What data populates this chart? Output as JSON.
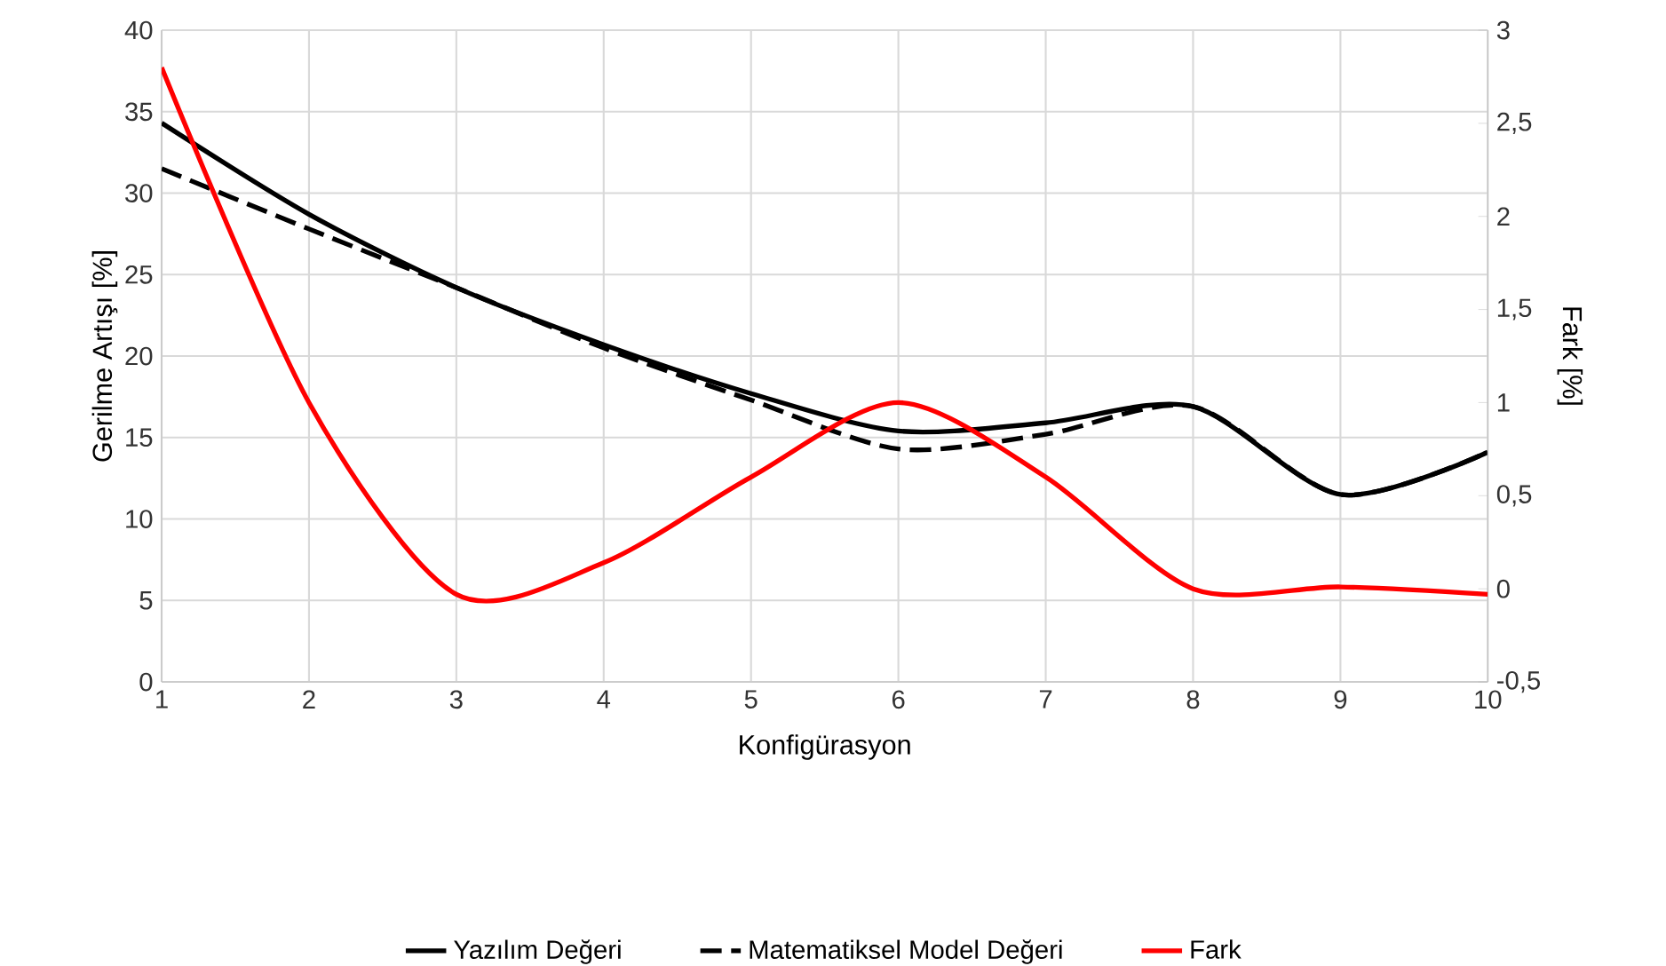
{
  "chart_data": {
    "type": "line",
    "xlabel": "Konfigürasyon",
    "ylabel": "Gerilme Artışı [%]",
    "y2label": "Fark [%]",
    "x": [
      1,
      2,
      3,
      4,
      5,
      6,
      7,
      8,
      9,
      10
    ],
    "series": [
      {
        "name": "Yazılım Değeri",
        "color": "#000000",
        "line_style": "solid",
        "values": [
          34.3,
          28.7,
          24.2,
          20.7,
          17.7,
          15.4,
          15.9,
          16.9,
          11.5,
          14.1
        ]
      },
      {
        "name": "Matematiksel Model Değeri",
        "color": "#000000",
        "line_style": "dashed",
        "values": [
          31.5,
          27.8,
          24.2,
          20.5,
          17.3,
          14.3,
          15.2,
          16.9,
          11.5,
          14.1
        ]
      },
      {
        "name": "Fark",
        "color": "#ff0000",
        "line_style": "solid",
        "axis": "y2",
        "values": [
          2.8,
          1.0,
          -0.03,
          0.14,
          0.6,
          1.0,
          0.6,
          0.0,
          0.01,
          -0.03
        ]
      }
    ],
    "xlim": [
      1,
      10
    ],
    "xticks": [
      1,
      2,
      3,
      4,
      5,
      6,
      7,
      8,
      9,
      10
    ],
    "ylim": [
      0,
      40
    ],
    "yticks": [
      0,
      5,
      10,
      15,
      20,
      25,
      30,
      35,
      40
    ],
    "y2lim": [
      -0.5,
      3
    ],
    "y2ticks": [
      {
        "value": -0.5,
        "label": "-0,5"
      },
      0,
      {
        "value": 0.5,
        "label": "0,5"
      },
      1,
      {
        "value": 1.5,
        "label": "1,5"
      },
      2,
      {
        "value": 2.5,
        "label": "2,5"
      },
      3
    ],
    "grid": true,
    "legend": "bottom",
    "marker": "none"
  }
}
